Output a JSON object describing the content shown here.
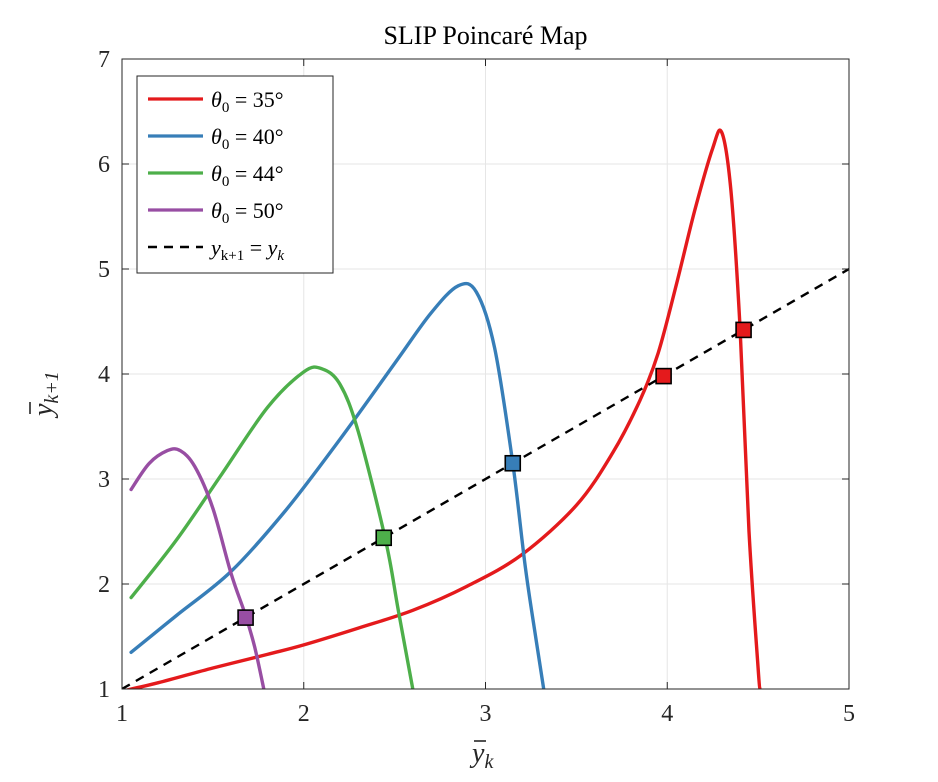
{
  "chart_data": {
    "type": "line",
    "title": "SLIP Poincaré Map",
    "xlabel": "y̅ₖ",
    "ylabel": "y̅ₖ₊₁",
    "xlim": [
      1,
      5
    ],
    "ylim": [
      1,
      7
    ],
    "xticks": [
      1,
      2,
      3,
      4,
      5
    ],
    "yticks": [
      1,
      2,
      3,
      4,
      5,
      6,
      7
    ],
    "grid": true,
    "legend_position": "top-left",
    "series": [
      {
        "name": "θ₀ = 35°",
        "color": "#e41a1c",
        "x": [
          1.0,
          1.2,
          1.5,
          1.8,
          2.0,
          2.3,
          2.6,
          2.9,
          3.2,
          3.5,
          3.7,
          3.85,
          3.95,
          4.05,
          4.15,
          4.25,
          4.3,
          4.35,
          4.4,
          4.45,
          4.5,
          4.51
        ],
        "y": [
          0.98,
          1.06,
          1.2,
          1.33,
          1.42,
          1.58,
          1.75,
          1.98,
          2.28,
          2.75,
          3.25,
          3.75,
          4.2,
          4.85,
          5.55,
          6.15,
          6.3,
          5.75,
          4.45,
          2.5,
          1.2,
          1.0
        ]
      },
      {
        "name": "θ₀ = 40°",
        "color": "#377eb8",
        "x": [
          1.05,
          1.3,
          1.6,
          1.9,
          2.2,
          2.5,
          2.7,
          2.85,
          2.95,
          3.05,
          3.15,
          3.22,
          3.28,
          3.32
        ],
        "y": [
          1.35,
          1.7,
          2.12,
          2.7,
          3.38,
          4.1,
          4.58,
          4.84,
          4.78,
          4.25,
          3.15,
          2.15,
          1.45,
          1.0
        ]
      },
      {
        "name": "θ₀ = 44°",
        "color": "#4daf4a",
        "x": [
          1.05,
          1.3,
          1.55,
          1.8,
          2.0,
          2.1,
          2.2,
          2.3,
          2.45,
          2.52,
          2.6
        ],
        "y": [
          1.87,
          2.42,
          3.05,
          3.68,
          4.02,
          4.05,
          3.9,
          3.45,
          2.42,
          1.75,
          1.0
        ]
      },
      {
        "name": "θ₀ = 50°",
        "color": "#984ea3",
        "x": [
          1.05,
          1.15,
          1.25,
          1.32,
          1.4,
          1.5,
          1.6,
          1.68,
          1.73,
          1.78
        ],
        "y": [
          2.9,
          3.15,
          3.27,
          3.27,
          3.12,
          2.72,
          2.1,
          1.7,
          1.4,
          1.0
        ]
      },
      {
        "name": "y_{k+1} = y_k",
        "color": "#000000",
        "dashed": true,
        "x": [
          1,
          5
        ],
        "y": [
          1,
          5
        ]
      }
    ],
    "fixed_points": [
      {
        "series": "θ₀ = 35°",
        "x": 3.98,
        "y": 3.98,
        "color": "#e41a1c"
      },
      {
        "series": "θ₀ = 35°",
        "x": 4.42,
        "y": 4.42,
        "color": "#e41a1c"
      },
      {
        "series": "θ₀ = 40°",
        "x": 3.15,
        "y": 3.15,
        "color": "#377eb8"
      },
      {
        "series": "θ₀ = 44°",
        "x": 2.44,
        "y": 2.44,
        "color": "#4daf4a"
      },
      {
        "series": "θ₀ = 50°",
        "x": 1.68,
        "y": 1.68,
        "color": "#984ea3"
      }
    ]
  },
  "legend": {
    "entries": [
      {
        "var": "θ",
        "sub": "0",
        "rest": " = 35°"
      },
      {
        "var": "θ",
        "sub": "0",
        "rest": " = 40°"
      },
      {
        "var": "θ",
        "sub": "0",
        "rest": " = 44°"
      },
      {
        "var": "θ",
        "sub": "0",
        "rest": " = 50°"
      },
      {
        "var": "y",
        "sub": "k+1",
        "rest": " = ",
        "var2": "y",
        "sub2": "k"
      }
    ]
  },
  "axes_text": {
    "xlabel_var": "y",
    "xlabel_sub": "k",
    "ylabel_var": "y",
    "ylabel_sub": "k+1"
  }
}
